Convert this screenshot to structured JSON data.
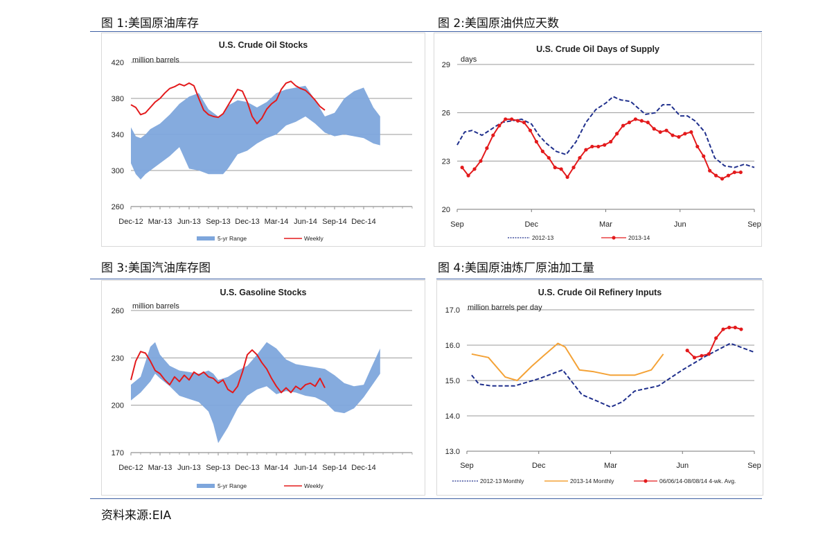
{
  "captions": {
    "fig1": "图 1:美国原油库存",
    "fig2": "图 2:美国原油供应天数",
    "fig3": "图 3:美国汽油库存图",
    "fig4": "图 4:美国原油炼厂原油加工量"
  },
  "source": "资料来源:EIA",
  "colors": {
    "band": "#7ea6dc",
    "weekly": "#e31a1c",
    "navy": "#1f2f8c",
    "orange": "#f4a236",
    "rule": "#3d5fa3"
  },
  "chart_data": [
    {
      "id": "crude_stocks",
      "type": "area",
      "title": "U.S. Crude Oil Stocks",
      "ylabel": "million barrels",
      "ylim": [
        260,
        420
      ],
      "yticks": [
        260,
        300,
        340,
        380,
        420
      ],
      "xlim": [
        0,
        29
      ],
      "xticks": [
        {
          "x": 0,
          "label": "Dec-12"
        },
        {
          "x": 3,
          "label": "Mar-13"
        },
        {
          "x": 6,
          "label": "Jun-13"
        },
        {
          "x": 9,
          "label": "Sep-13"
        },
        {
          "x": 12,
          "label": "Dec-13"
        },
        {
          "x": 15,
          "label": "Mar-14"
        },
        {
          "x": 18,
          "label": "Jun-14"
        },
        {
          "x": 21,
          "label": "Sep-14"
        },
        {
          "x": 24,
          "label": "Dec-14"
        }
      ],
      "band": {
        "x": [
          0,
          0.5,
          1,
          1.5,
          2,
          3,
          4,
          5,
          6,
          7,
          8,
          9,
          9.5,
          10,
          11,
          12,
          13,
          14,
          15,
          16,
          17,
          18,
          19,
          20,
          21,
          22,
          23,
          24,
          25,
          25.7
        ],
        "upper": [
          348,
          338,
          336,
          340,
          346,
          352,
          362,
          374,
          382,
          386,
          368,
          360,
          362,
          372,
          378,
          376,
          370,
          376,
          386,
          390,
          392,
          394,
          378,
          360,
          364,
          380,
          388,
          392,
          370,
          360
        ],
        "lower": [
          308,
          296,
          290,
          296,
          300,
          308,
          316,
          326,
          302,
          300,
          296,
          296,
          296,
          302,
          318,
          322,
          330,
          336,
          340,
          350,
          354,
          360,
          352,
          342,
          338,
          340,
          338,
          336,
          330,
          328
        ]
      },
      "series": [
        {
          "name": "Weekly",
          "x": [
            0,
            0.5,
            1,
            1.5,
            2,
            2.5,
            3,
            3.5,
            4,
            4.5,
            5,
            5.5,
            6,
            6.5,
            7,
            7.5,
            8,
            8.5,
            9,
            9.5,
            10,
            10.5,
            11,
            11.5,
            12,
            12.5,
            13,
            13.5,
            14,
            14.5,
            15,
            15.5,
            16,
            16.5,
            17,
            17.5,
            18,
            18.5,
            19,
            19.5,
            20
          ],
          "values": [
            373,
            370,
            362,
            364,
            370,
            376,
            380,
            386,
            391,
            393,
            396,
            394,
            397,
            394,
            380,
            367,
            362,
            360,
            359,
            363,
            372,
            381,
            390,
            388,
            376,
            360,
            352,
            358,
            368,
            374,
            378,
            390,
            397,
            399,
            394,
            391,
            389,
            384,
            378,
            371,
            367
          ]
        }
      ],
      "legend": [
        "5-yr Range",
        "Weekly"
      ]
    },
    {
      "id": "days_supply",
      "type": "line",
      "title": "U.S. Crude Oil Days of Supply",
      "ylabel": "days",
      "ylim": [
        20,
        29
      ],
      "yticks": [
        20,
        23,
        26,
        29
      ],
      "xlim": [
        0,
        12
      ],
      "xticks": [
        {
          "x": 0,
          "label": "Sep"
        },
        {
          "x": 3,
          "label": "Dec"
        },
        {
          "x": 6,
          "label": "Mar"
        },
        {
          "x": 9,
          "label": "Jun"
        },
        {
          "x": 12,
          "label": "Sep"
        }
      ],
      "series": [
        {
          "name": "2012-13",
          "dashed": true,
          "x": [
            0,
            0.3,
            0.6,
            1,
            1.4,
            1.8,
            2.2,
            2.6,
            3,
            3.3,
            3.6,
            4,
            4.4,
            4.8,
            5.2,
            5.6,
            6,
            6.3,
            6.6,
            7,
            7.3,
            7.6,
            8,
            8.3,
            8.6,
            9,
            9.3,
            9.6,
            10,
            10.4,
            10.8,
            11.2,
            11.6,
            12
          ],
          "values": [
            24.0,
            24.8,
            24.9,
            24.6,
            25.0,
            25.4,
            25.5,
            25.6,
            25.3,
            24.6,
            24.1,
            23.6,
            23.4,
            24.2,
            25.4,
            26.2,
            26.6,
            27.0,
            26.8,
            26.7,
            26.3,
            25.9,
            26.0,
            26.5,
            26.5,
            25.8,
            25.8,
            25.5,
            24.8,
            23.2,
            22.7,
            22.6,
            22.8,
            22.6
          ]
        },
        {
          "name": "2013-14",
          "dashed": false,
          "x": [
            0.2,
            0.45,
            0.7,
            0.95,
            1.2,
            1.45,
            1.7,
            1.95,
            2.2,
            2.45,
            2.7,
            2.95,
            3.2,
            3.45,
            3.7,
            3.95,
            4.2,
            4.45,
            4.7,
            4.95,
            5.2,
            5.45,
            5.7,
            5.95,
            6.2,
            6.45,
            6.7,
            6.95,
            7.2,
            7.45,
            7.7,
            7.95,
            8.2,
            8.45,
            8.7,
            8.95,
            9.2,
            9.45,
            9.7,
            9.95,
            10.2,
            10.45,
            10.7,
            10.95,
            11.2,
            11.45
          ],
          "values": [
            22.6,
            22.1,
            22.5,
            23.0,
            23.8,
            24.6,
            25.2,
            25.6,
            25.6,
            25.5,
            25.4,
            24.9,
            24.2,
            23.6,
            23.2,
            22.6,
            22.5,
            22.0,
            22.6,
            23.2,
            23.7,
            23.9,
            23.9,
            24.0,
            24.2,
            24.7,
            25.2,
            25.4,
            25.6,
            25.5,
            25.4,
            25.0,
            24.8,
            24.9,
            24.6,
            24.5,
            24.7,
            24.8,
            23.9,
            23.3,
            22.4,
            22.1,
            21.9,
            22.1,
            22.3,
            22.3
          ]
        }
      ],
      "legend": [
        "2012-13",
        "2013-14"
      ]
    },
    {
      "id": "gasoline_stocks",
      "type": "area",
      "title": "U.S. Gasoline Stocks",
      "ylabel": "million barrels",
      "ylim": [
        170,
        260
      ],
      "yticks": [
        170,
        200,
        230,
        260
      ],
      "xlim": [
        0,
        29
      ],
      "xticks": [
        {
          "x": 0,
          "label": "Dec-12"
        },
        {
          "x": 3,
          "label": "Mar-13"
        },
        {
          "x": 6,
          "label": "Jun-13"
        },
        {
          "x": 9,
          "label": "Sep-13"
        },
        {
          "x": 12,
          "label": "Dec-13"
        },
        {
          "x": 15,
          "label": "Mar-14"
        },
        {
          "x": 18,
          "label": "Jun-14"
        },
        {
          "x": 21,
          "label": "Sep-14"
        },
        {
          "x": 24,
          "label": "Dec-14"
        }
      ],
      "band": {
        "x": [
          0,
          1,
          2,
          2.5,
          3,
          4,
          5,
          6,
          7,
          8,
          8.5,
          9,
          10,
          11,
          12,
          13,
          14,
          15,
          16,
          17,
          18,
          19,
          20,
          21,
          22,
          23,
          24,
          24.8,
          25.7
        ],
        "upper": [
          213,
          218,
          237,
          240,
          232,
          225,
          222,
          221,
          220,
          222,
          220,
          216,
          218,
          222,
          225,
          232,
          240,
          236,
          229,
          226,
          225,
          224,
          223,
          219,
          214,
          212,
          213,
          224,
          236
        ],
        "lower": [
          203,
          208,
          215,
          220,
          217,
          212,
          206,
          204,
          202,
          196,
          188,
          176,
          186,
          198,
          206,
          210,
          212,
          207,
          209,
          208,
          206,
          205,
          202,
          196,
          195,
          198,
          205,
          212,
          220
        ]
      },
      "series": [
        {
          "name": "Weekly",
          "x": [
            0,
            0.5,
            1,
            1.5,
            2,
            2.5,
            3,
            3.5,
            4,
            4.5,
            5,
            5.5,
            6,
            6.5,
            7,
            7.5,
            8,
            8.5,
            9,
            9.5,
            10,
            10.5,
            11,
            11.5,
            12,
            12.5,
            13,
            13.5,
            14,
            14.5,
            15,
            15.5,
            16,
            16.5,
            17,
            17.5,
            18,
            18.5,
            19,
            19.5,
            20
          ],
          "values": [
            216,
            228,
            234,
            233,
            228,
            222,
            220,
            216,
            213,
            218,
            215,
            219,
            216,
            221,
            219,
            221,
            218,
            217,
            214,
            216,
            210,
            208,
            212,
            221,
            232,
            235,
            232,
            227,
            223,
            217,
            212,
            208,
            211,
            208,
            212,
            210,
            213,
            214,
            212,
            217,
            211
          ]
        }
      ],
      "legend": [
        "5-yr Range",
        "Weekly"
      ]
    },
    {
      "id": "refinery_inputs",
      "type": "line",
      "title": "U.S. Crude Oil Refinery Inputs",
      "ylabel": "million barrels per day",
      "ylim": [
        13.0,
        17.0
      ],
      "yticks": [
        "13.0",
        "14.0",
        "15.0",
        "16.0",
        "17.0"
      ],
      "xlim": [
        0,
        12
      ],
      "xticks": [
        {
          "x": 0,
          "label": "Sep"
        },
        {
          "x": 3,
          "label": "Dec"
        },
        {
          "x": 6,
          "label": "Mar"
        },
        {
          "x": 9,
          "label": "Jun"
        },
        {
          "x": 12,
          "label": "Sep"
        }
      ],
      "series": [
        {
          "name": "2012-13 Monthly",
          "dashed": true,
          "x": [
            0.2,
            0.5,
            1,
            2,
            3,
            4,
            4.8,
            5.5,
            6,
            6.5,
            7,
            8,
            9,
            10,
            11,
            12
          ],
          "values": [
            15.15,
            14.9,
            14.85,
            14.85,
            15.05,
            15.3,
            14.6,
            14.4,
            14.25,
            14.4,
            14.7,
            14.85,
            15.3,
            15.7,
            16.05,
            15.8
          ]
        },
        {
          "name": "2013-14 Monthly",
          "dashed": false,
          "x": [
            0.2,
            0.9,
            1.6,
            2.1,
            2.7,
            3.2,
            3.8,
            4.1,
            4.7,
            5.3,
            6,
            7,
            7.7,
            8.2
          ],
          "values": [
            15.75,
            15.65,
            15.1,
            15.0,
            15.4,
            15.7,
            16.05,
            15.95,
            15.3,
            15.25,
            15.15,
            15.15,
            15.3,
            15.75
          ]
        },
        {
          "name": "06/06/14-08/08/14 4-wk. Avg.",
          "dashed": false,
          "markers": true,
          "x": [
            9.2,
            9.5,
            9.8,
            10.1,
            10.4,
            10.7,
            10.95,
            11.2,
            11.45
          ],
          "values": [
            15.85,
            15.65,
            15.7,
            15.75,
            16.2,
            16.45,
            16.5,
            16.5,
            16.45
          ]
        }
      ],
      "legend": [
        "2012-13 Monthly",
        "2013-14 Monthly",
        "06/06/14-08/08/14 4-wk. Avg."
      ]
    }
  ]
}
